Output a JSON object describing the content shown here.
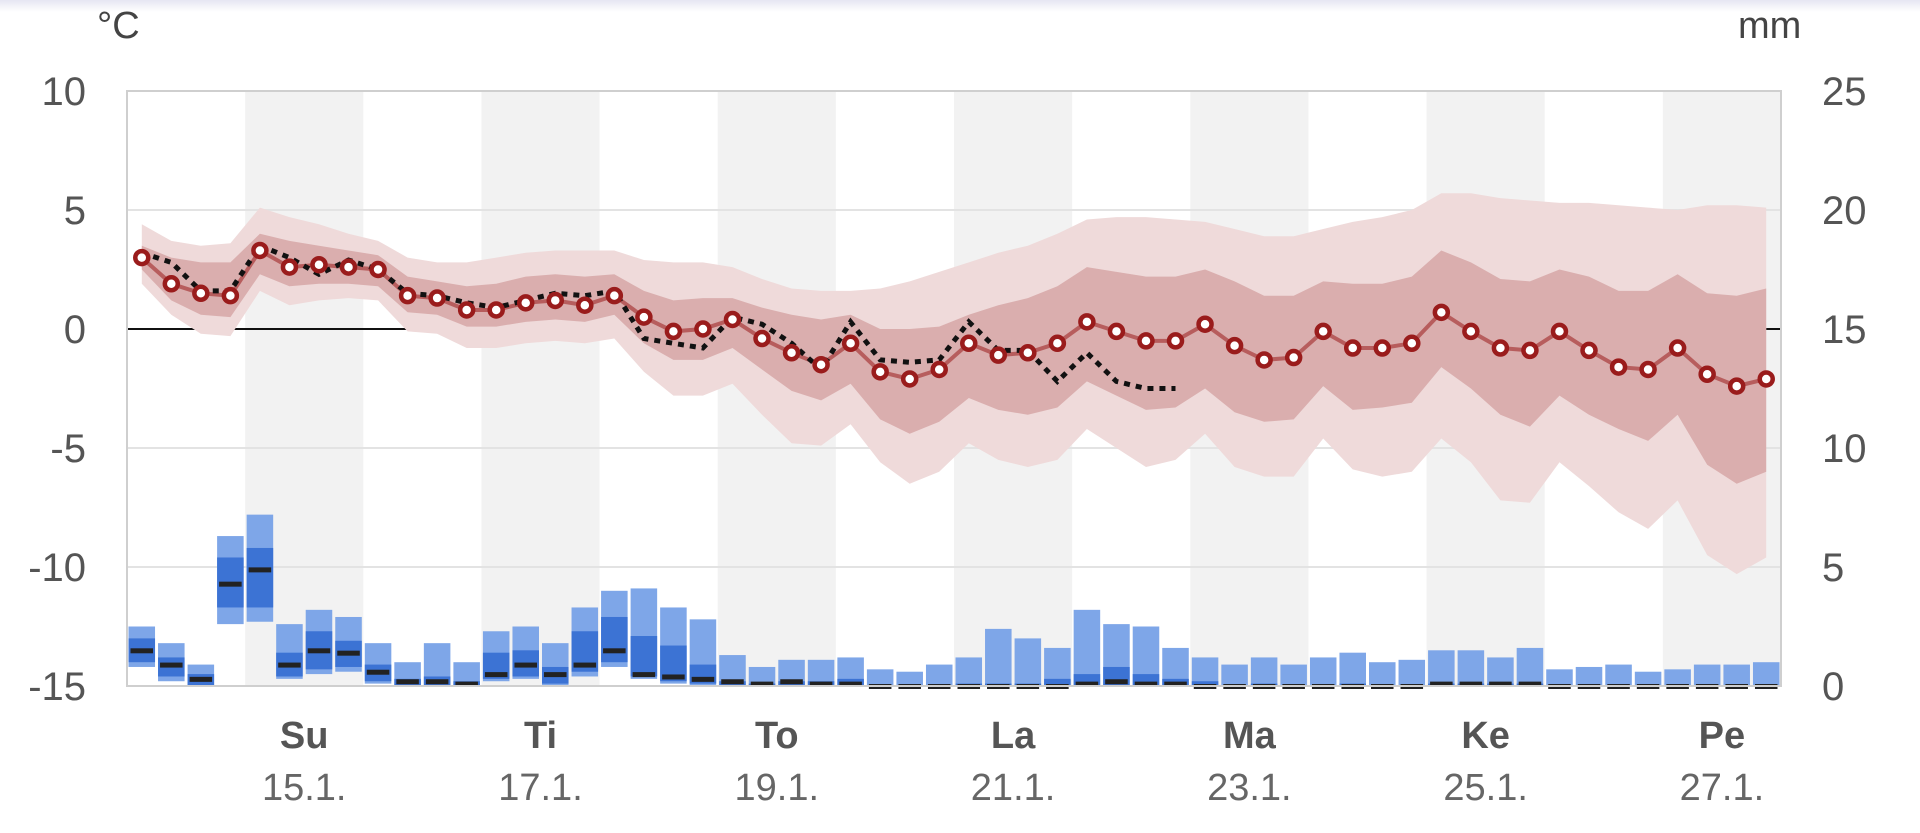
{
  "chart_data": {
    "type": "line",
    "left_unit": "°C",
    "right_unit": "mm",
    "y_left_ticks": [
      "10",
      "5",
      "0",
      "-5",
      "-10",
      "-15"
    ],
    "y_right_ticks": [
      "25",
      "20",
      "15",
      "10",
      "5",
      "0"
    ],
    "ylim_left": [
      -15,
      10
    ],
    "ylim_right": [
      0,
      25
    ],
    "x_labels": [
      {
        "day": "Su",
        "date": "15.1."
      },
      {
        "day": "Ti",
        "date": "17.1."
      },
      {
        "day": "To",
        "date": "19.1."
      },
      {
        "day": "La",
        "date": "21.1."
      },
      {
        "day": "Ma",
        "date": "23.1."
      },
      {
        "day": "Ke",
        "date": "25.1."
      },
      {
        "day": "Pe",
        "date": "27.1."
      }
    ],
    "colors": {
      "median_line": "#9a1c1c",
      "band_inner": "#d7a9a9",
      "band_outer": "#efdada",
      "observed_line": "#111111",
      "precip_light": "#7ea6e8",
      "precip_mid": "#3c73d4",
      "precip_median": "#222222",
      "weekend_shade": "#f2f2f2"
    },
    "temperature_median": [
      3.0,
      1.9,
      1.5,
      1.4,
      3.3,
      2.6,
      2.7,
      2.6,
      2.5,
      1.4,
      1.3,
      0.8,
      0.8,
      1.1,
      1.2,
      1.0,
      1.4,
      0.5,
      -0.1,
      0.0,
      0.4,
      -0.4,
      -1.0,
      -1.5,
      -0.6,
      -1.8,
      -2.1,
      -1.7,
      -0.6,
      -1.1,
      -1.0,
      -0.6,
      0.3,
      -0.1,
      -0.5,
      -0.5,
      0.2,
      -0.7,
      -1.3,
      -1.2,
      -0.1,
      -0.8,
      -0.8,
      -0.6,
      0.7,
      -0.1,
      -0.8,
      -0.9,
      -0.1,
      -0.9,
      -1.6,
      -1.7,
      -0.8,
      -1.9,
      -2.4,
      -2.1
    ],
    "band_inner_upper": [
      3.5,
      3.0,
      2.8,
      2.8,
      4.0,
      3.7,
      3.5,
      3.3,
      3.1,
      2.2,
      2.0,
      1.8,
      1.9,
      2.2,
      2.3,
      2.2,
      2.3,
      1.6,
      1.2,
      1.3,
      1.3,
      0.9,
      0.6,
      0.4,
      0.6,
      0.0,
      0.0,
      0.1,
      0.6,
      1.0,
      1.3,
      1.8,
      2.6,
      2.4,
      2.2,
      2.2,
      2.5,
      2.0,
      1.4,
      1.4,
      2.0,
      1.9,
      1.9,
      2.2,
      3.3,
      2.8,
      2.1,
      2.0,
      2.5,
      2.2,
      1.6,
      1.6,
      2.3,
      1.5,
      1.4,
      1.7
    ],
    "band_inner_lower": [
      2.5,
      1.2,
      0.6,
      0.5,
      2.3,
      1.8,
      1.9,
      1.9,
      1.8,
      0.7,
      0.6,
      0.1,
      0.1,
      0.3,
      0.4,
      0.3,
      0.6,
      -0.6,
      -1.3,
      -1.3,
      -0.8,
      -1.7,
      -2.6,
      -3.0,
      -2.3,
      -3.8,
      -4.4,
      -3.9,
      -2.9,
      -3.4,
      -3.6,
      -3.3,
      -2.2,
      -2.8,
      -3.4,
      -3.3,
      -2.5,
      -3.5,
      -3.9,
      -3.8,
      -2.4,
      -3.4,
      -3.3,
      -3.1,
      -1.6,
      -2.5,
      -3.6,
      -4.1,
      -2.8,
      -3.6,
      -4.2,
      -4.7,
      -3.6,
      -5.7,
      -6.5,
      -6.0
    ],
    "band_outer_upper": [
      4.4,
      3.7,
      3.5,
      3.6,
      5.1,
      4.7,
      4.4,
      4.0,
      3.7,
      3.0,
      2.8,
      2.8,
      3.0,
      3.2,
      3.3,
      3.3,
      3.3,
      2.9,
      2.8,
      2.8,
      2.6,
      2.1,
      1.7,
      1.6,
      1.6,
      1.7,
      2.0,
      2.4,
      2.8,
      3.2,
      3.5,
      4.0,
      4.6,
      4.7,
      4.7,
      4.6,
      4.5,
      4.2,
      3.9,
      3.9,
      4.2,
      4.5,
      4.7,
      5.0,
      5.7,
      5.7,
      5.5,
      5.4,
      5.3,
      5.3,
      5.2,
      5.1,
      5.0,
      5.2,
      5.2,
      5.1
    ],
    "band_outer_lower": [
      1.9,
      0.6,
      -0.2,
      -0.3,
      1.6,
      1.0,
      1.2,
      1.3,
      1.2,
      -0.1,
      -0.2,
      -0.8,
      -0.8,
      -0.6,
      -0.5,
      -0.6,
      -0.4,
      -1.8,
      -2.8,
      -2.8,
      -2.3,
      -3.6,
      -4.8,
      -4.9,
      -4.0,
      -5.6,
      -6.5,
      -6.0,
      -4.8,
      -5.5,
      -5.8,
      -5.5,
      -4.2,
      -5.0,
      -5.8,
      -5.5,
      -4.4,
      -5.8,
      -6.2,
      -6.2,
      -4.6,
      -5.9,
      -6.2,
      -6.0,
      -4.6,
      -5.6,
      -7.2,
      -7.3,
      -5.6,
      -6.6,
      -7.7,
      -8.4,
      -7.2,
      -9.5,
      -10.3,
      -9.6
    ],
    "observed_temperature": [
      3.2,
      2.8,
      1.6,
      1.6,
      3.5,
      3.0,
      2.3,
      2.9,
      2.5,
      1.5,
      1.4,
      1.1,
      0.9,
      1.2,
      1.5,
      1.4,
      1.6,
      -0.4,
      -0.6,
      -0.8,
      0.5,
      0.2,
      -0.6,
      -1.7,
      0.3,
      -1.3,
      -1.4,
      -1.3,
      0.3,
      -0.9,
      -0.9,
      -2.2,
      -1.0,
      -2.2,
      -2.5,
      -2.5
    ],
    "precip_outer_top": [
      2.5,
      1.8,
      0.9,
      6.3,
      7.2,
      2.6,
      3.2,
      2.9,
      1.8,
      1.0,
      1.8,
      1.0,
      2.3,
      2.5,
      1.8,
      3.3,
      4.0,
      4.1,
      3.3,
      2.8,
      1.3,
      0.8,
      1.1,
      1.1,
      1.2,
      0.7,
      0.6,
      0.9,
      1.2,
      2.4,
      2.0,
      1.6,
      3.2,
      2.6,
      2.5,
      1.6,
      1.2,
      0.9,
      1.2,
      0.9,
      1.2,
      1.4,
      1.0,
      1.1,
      1.5,
      1.5,
      1.2,
      1.6,
      0.7,
      0.8,
      0.9,
      0.6,
      0.7,
      0.9,
      0.9,
      1.0
    ],
    "precip_inner_top": [
      2.0,
      1.2,
      0.5,
      5.4,
      5.8,
      1.4,
      2.3,
      1.9,
      0.9,
      0.3,
      0.4,
      0.2,
      1.4,
      1.5,
      0.8,
      2.3,
      2.9,
      2.1,
      1.7,
      0.9,
      0.2,
      0.1,
      0.2,
      0.2,
      0.3,
      0.0,
      0.0,
      0.0,
      0.1,
      0.1,
      0.1,
      0.3,
      0.5,
      0.8,
      0.5,
      0.3,
      0.2,
      0.0,
      0.1,
      0.0,
      0.0,
      0.1,
      0.0,
      0.0,
      0.1,
      0.1,
      0.1,
      0.1,
      0.0,
      0.0,
      0.0,
      0.0,
      0.0,
      0.0,
      0.0,
      0.0
    ],
    "precip_inner_bottom": [
      1.0,
      0.4,
      0.0,
      3.3,
      3.3,
      0.4,
      0.7,
      0.8,
      0.2,
      0.0,
      0.0,
      0.0,
      0.3,
      0.4,
      0.1,
      0.6,
      1.0,
      0.4,
      0.2,
      0.1,
      0.0,
      0.0,
      0.0,
      0.0,
      0.0,
      0.0,
      0.0,
      0.0,
      0.0,
      0.0,
      0.0,
      0.0,
      0.0,
      0.0,
      0.0,
      0.0,
      0.0,
      0.0,
      0.0,
      0.0,
      0.0,
      0.0,
      0.0,
      0.0,
      0.0,
      0.0,
      0.0,
      0.0,
      0.0,
      0.0,
      0.0,
      0.0,
      0.0,
      0.0,
      0.0,
      0.0
    ],
    "precip_outer_bottom": [
      0.8,
      0.2,
      0.0,
      2.6,
      2.7,
      0.3,
      0.5,
      0.6,
      0.1,
      0.0,
      0.0,
      0.0,
      0.2,
      0.3,
      0.0,
      0.4,
      0.8,
      0.3,
      0.1,
      0.0,
      0.0,
      0.0,
      0.0,
      0.0,
      0.0,
      0.0,
      0.0,
      0.0,
      0.0,
      0.0,
      0.0,
      0.0,
      0.0,
      0.0,
      0.0,
      0.0,
      0.0,
      0.0,
      0.0,
      0.0,
      0.0,
      0.0,
      0.0,
      0.0,
      0.0,
      0.0,
      0.0,
      0.0,
      0.0,
      0.0,
      0.0,
      0.0,
      0.0,
      0.0,
      0.0,
      0.0
    ],
    "precip_median": [
      1.5,
      0.9,
      0.3,
      4.3,
      4.9,
      0.9,
      1.5,
      1.4,
      0.6,
      0.2,
      0.2,
      0.1,
      0.5,
      0.9,
      0.5,
      0.9,
      1.5,
      0.5,
      0.4,
      0.3,
      0.2,
      0.1,
      0.2,
      0.1,
      0.1,
      0.0,
      0.0,
      0.0,
      0.0,
      0.0,
      0.0,
      0.0,
      0.1,
      0.2,
      0.1,
      0.1,
      0.0,
      0.0,
      0.0,
      0.0,
      0.0,
      0.0,
      0.0,
      0.0,
      0.1,
      0.1,
      0.1,
      0.1,
      0.0,
      0.0,
      0.0,
      0.0,
      0.0,
      0.0,
      0.0,
      0.0
    ],
    "grid": true,
    "zero_line": true,
    "weekend_shading": true
  }
}
